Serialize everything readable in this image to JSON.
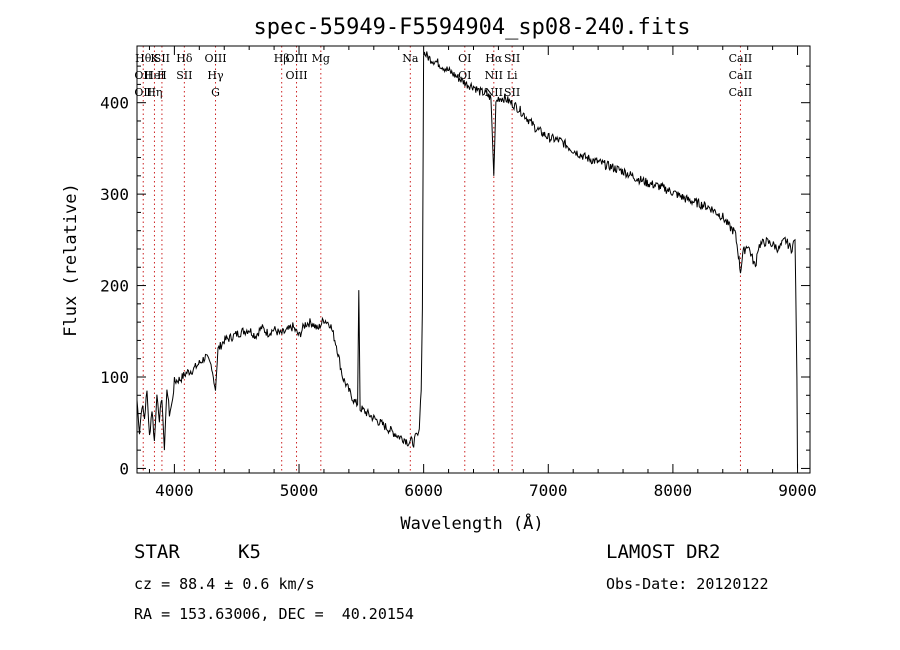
{
  "chart_data": {
    "type": "line",
    "title": "spec-55949-F5594904_sp08-240.fits",
    "xlabel": "Wavelength (Å)",
    "ylabel": "Flux (relative)",
    "xlim": [
      3700,
      9100
    ],
    "ylim": [
      -5,
      462
    ],
    "xticks": [
      4000,
      5000,
      6000,
      7000,
      8000,
      9000
    ],
    "yticks": [
      0,
      100,
      200,
      300,
      400
    ],
    "grid": false,
    "series": [
      {
        "x": [
          3700,
          3720,
          3740,
          3760,
          3780,
          3800,
          3820,
          3840,
          3860,
          3880,
          3900,
          3920,
          3940,
          3960,
          3980,
          4000,
          4050,
          4100,
          4150,
          4200,
          4250,
          4300,
          4330,
          4350,
          4400,
          4450,
          4500,
          4550,
          4600,
          4650,
          4700,
          4750,
          4800,
          4850,
          4900,
          4950,
          5000,
          5050,
          5100,
          5150,
          5200,
          5250,
          5300,
          5350,
          5400,
          5450,
          5470,
          5480,
          5490,
          5500,
          5600,
          5700,
          5800,
          5850,
          5880,
          5900,
          5920,
          5940,
          5960,
          5970,
          5980,
          5990,
          6000,
          6050,
          6100,
          6150,
          6200,
          6250,
          6300,
          6350,
          6400,
          6450,
          6500,
          6540,
          6563,
          6580,
          6600,
          6650,
          6700,
          6750,
          6800,
          6900,
          7000,
          7100,
          7200,
          7300,
          7400,
          7500,
          7600,
          7700,
          7800,
          7900,
          8000,
          8100,
          8200,
          8300,
          8400,
          8450,
          8498,
          8520,
          8542,
          8560,
          8600,
          8662,
          8680,
          8700,
          8750,
          8800,
          8850,
          8900,
          8950,
          8980,
          8995,
          9000
        ],
        "values": [
          75,
          40,
          70,
          55,
          85,
          35,
          65,
          30,
          80,
          55,
          75,
          20,
          90,
          60,
          70,
          95,
          98,
          105,
          108,
          115,
          122,
          112,
          85,
          130,
          140,
          143,
          147,
          150,
          152,
          145,
          154,
          148,
          152,
          147,
          150,
          155,
          145,
          158,
          160,
          152,
          163,
          158,
          135,
          100,
          85,
          72,
          70,
          195,
          65,
          65,
          55,
          45,
          35,
          32,
          28,
          30,
          28,
          35,
          36,
          60,
          85,
          175,
          455,
          448,
          445,
          440,
          435,
          430,
          425,
          420,
          418,
          412,
          410,
          405,
          320,
          400,
          405,
          405,
          400,
          395,
          388,
          372,
          362,
          358,
          348,
          340,
          335,
          330,
          325,
          318,
          312,
          308,
          302,
          295,
          290,
          285,
          275,
          265,
          258,
          240,
          215,
          235,
          245,
          220,
          240,
          245,
          248,
          245,
          240,
          250,
          240,
          250,
          100,
          0
        ]
      }
    ],
    "line_markers": [
      {
        "labels": [
          "Hθ",
          "OII",
          "OII"
        ],
        "x": 3750
      },
      {
        "labels": [
          "K",
          "HeI",
          "Hη"
        ],
        "x": 3840
      },
      {
        "labels": [
          "SII",
          "H"
        ],
        "x": 3900
      },
      {
        "labels": [
          "Hδ",
          "SII"
        ],
        "x": 4080
      },
      {
        "labels": [
          "OIII",
          "Hγ",
          "G"
        ],
        "x": 4330
      },
      {
        "labels": [
          "Hβ"
        ],
        "x": 4861
      },
      {
        "labels": [
          "OIII",
          "OIII"
        ],
        "x": 4980
      },
      {
        "labels": [
          "Mg"
        ],
        "x": 5175
      },
      {
        "labels": [
          "Na"
        ],
        "x": 5893
      },
      {
        "labels": [
          "OI",
          "OI"
        ],
        "x": 6330
      },
      {
        "labels": [
          "Hα",
          "NII",
          "NII"
        ],
        "x": 6563
      },
      {
        "labels": [
          "SII",
          "Li",
          "SII"
        ],
        "x": 6710
      },
      {
        "labels": [
          "CaII",
          "CaII",
          "CaII"
        ],
        "x": 8542
      }
    ]
  },
  "info": {
    "object_type": "STAR",
    "subclass": "K5",
    "redshift": "cz = 88.4 ± 0.6 km/s",
    "coords": "RA = 153.63006, DEC =  40.20154",
    "survey": "LAMOST DR2",
    "obs_date": "Obs-Date: 20120122"
  }
}
